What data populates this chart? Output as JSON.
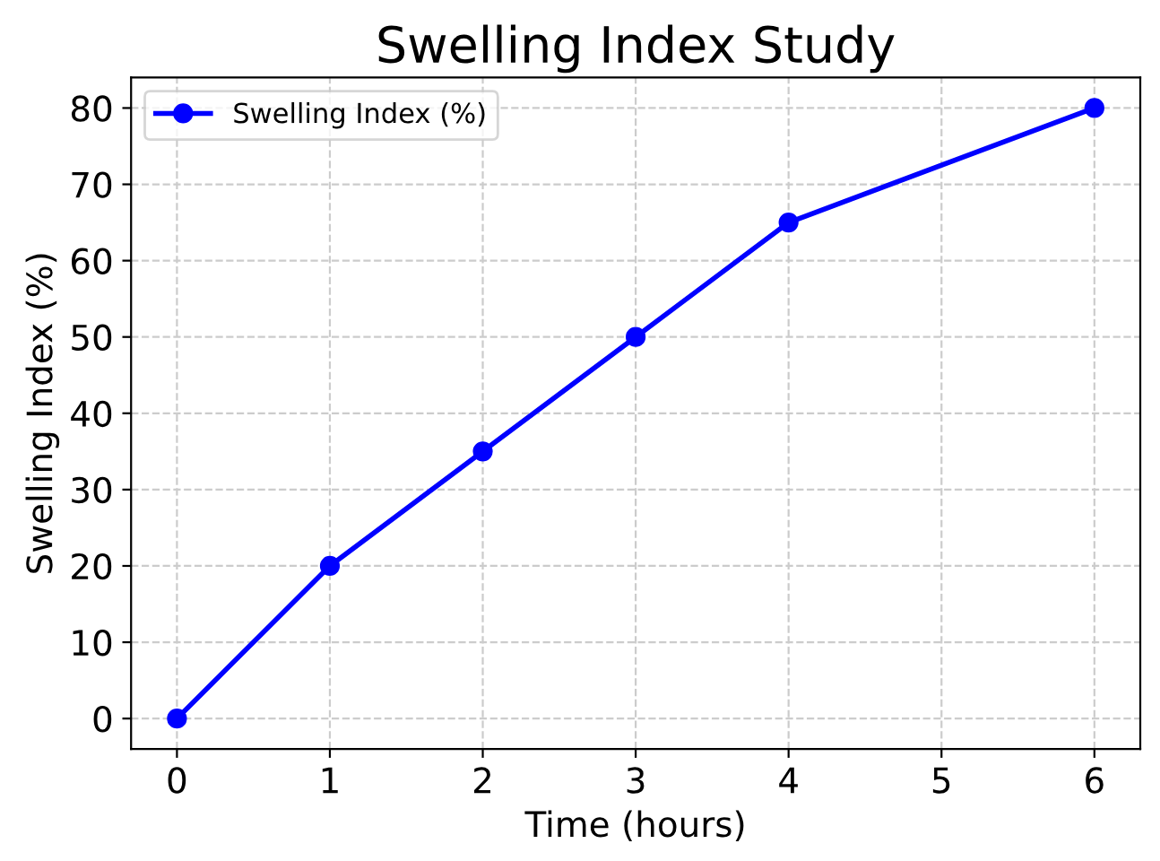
{
  "chart_data": {
    "type": "line",
    "title": "Swelling Index Study",
    "xlabel": "Time (hours)",
    "ylabel": "Swelling Index (%)",
    "x": [
      0,
      1,
      2,
      3,
      4,
      6
    ],
    "series": [
      {
        "name": "Swelling Index (%)",
        "color": "#0000ff",
        "values": [
          0,
          20,
          35,
          50,
          65,
          80
        ]
      }
    ],
    "xlim": [
      -0.3,
      6.3
    ],
    "xticks": [
      0,
      1,
      2,
      3,
      4,
      5,
      6
    ],
    "ylim": [
      -4,
      84
    ],
    "yticks": [
      0,
      10,
      20,
      30,
      40,
      50,
      60,
      70,
      80
    ],
    "grid": true,
    "legend": "top left",
    "marker": "circle",
    "line_style": "solid"
  }
}
